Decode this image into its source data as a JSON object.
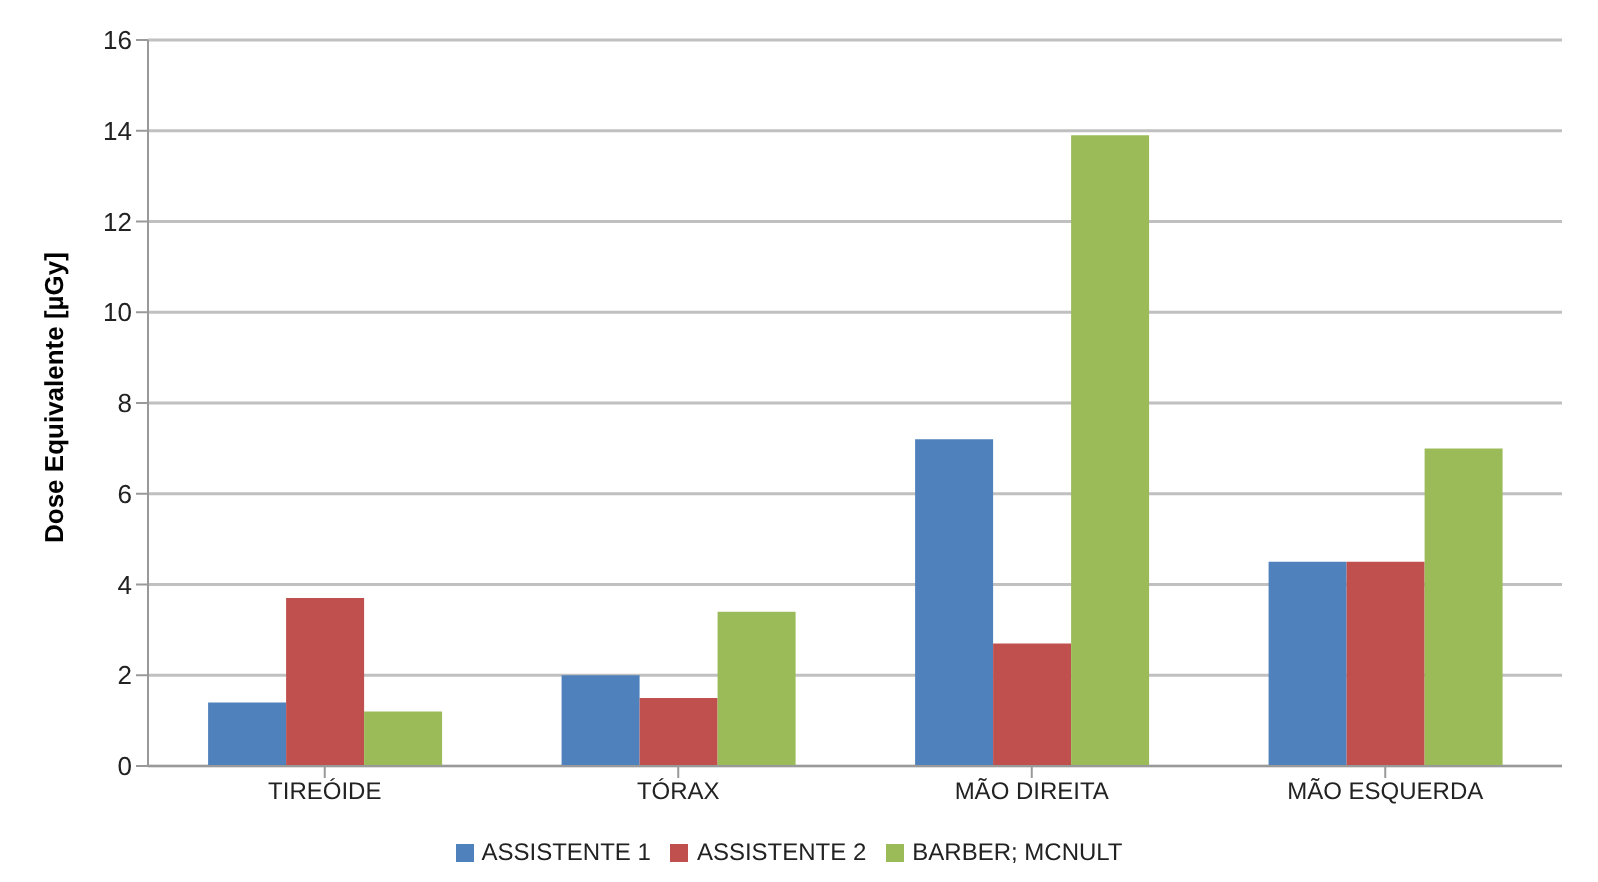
{
  "chart_data": {
    "type": "bar",
    "ylabel": "Dose Equivalente [µGy]",
    "categories": [
      "TIREÓIDE",
      "TÓRAX",
      "MÃO DIREITA",
      "MÃO ESQUERDA"
    ],
    "series": [
      {
        "name": "ASSISTENTE 1",
        "color": "#4f81bd",
        "values": [
          1.4,
          2.0,
          7.2,
          4.5
        ]
      },
      {
        "name": "ASSISTENTE 2",
        "color": "#c0504d",
        "values": [
          3.7,
          1.5,
          2.7,
          4.5
        ]
      },
      {
        "name": "BARBER; MCNULT",
        "color": "#9bbb59",
        "values": [
          1.2,
          3.4,
          13.9,
          7.0
        ]
      }
    ],
    "ylim": [
      0,
      16
    ],
    "yticks": [
      0,
      2,
      4,
      6,
      8,
      10,
      12,
      14,
      16
    ],
    "grid": "y",
    "legend": "bottom"
  }
}
